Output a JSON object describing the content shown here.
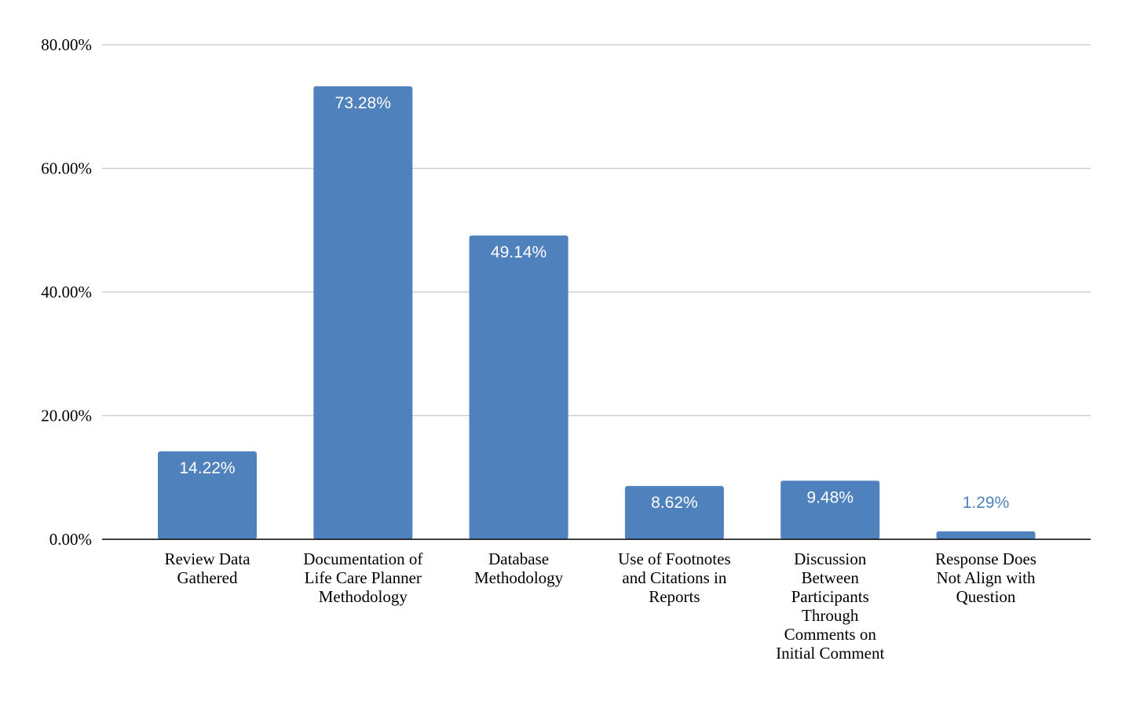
{
  "chart_data": {
    "type": "bar",
    "title": "",
    "xlabel": "",
    "ylabel": "",
    "ylim": [
      0,
      0.8
    ],
    "yticks": [
      {
        "value": 0.0,
        "label": "0.00%"
      },
      {
        "value": 0.2,
        "label": "20.00%"
      },
      {
        "value": 0.4,
        "label": "40.00%"
      },
      {
        "value": 0.6,
        "label": "60.00%"
      },
      {
        "value": 0.8,
        "label": "80.00%"
      }
    ],
    "grid": true,
    "legend": "none",
    "categories": [
      [
        "Review Data",
        "Gathered"
      ],
      [
        "Documentation of",
        "Life Care Planner",
        "Methodology"
      ],
      [
        "Database",
        "Methodology"
      ],
      [
        "Use of Footnotes",
        "and Citations in",
        "Reports"
      ],
      [
        "Discussion",
        "Between",
        "Participants",
        "Through",
        "Comments on",
        "Initial Comment"
      ],
      [
        "Response Does",
        "Not Align with",
        "Question"
      ]
    ],
    "values": [
      0.1422,
      0.7328,
      0.4914,
      0.0862,
      0.0948,
      0.0129
    ],
    "data_labels": [
      "14.22%",
      "73.28%",
      "49.14%",
      "8.62%",
      "9.48%",
      "1.29%"
    ],
    "colors": {
      "bar": "#4f81bd",
      "grid": "#c8c8c8",
      "axis": "#000000",
      "label_inside": "#ffffff",
      "label_outside": "#4f81bd"
    }
  }
}
